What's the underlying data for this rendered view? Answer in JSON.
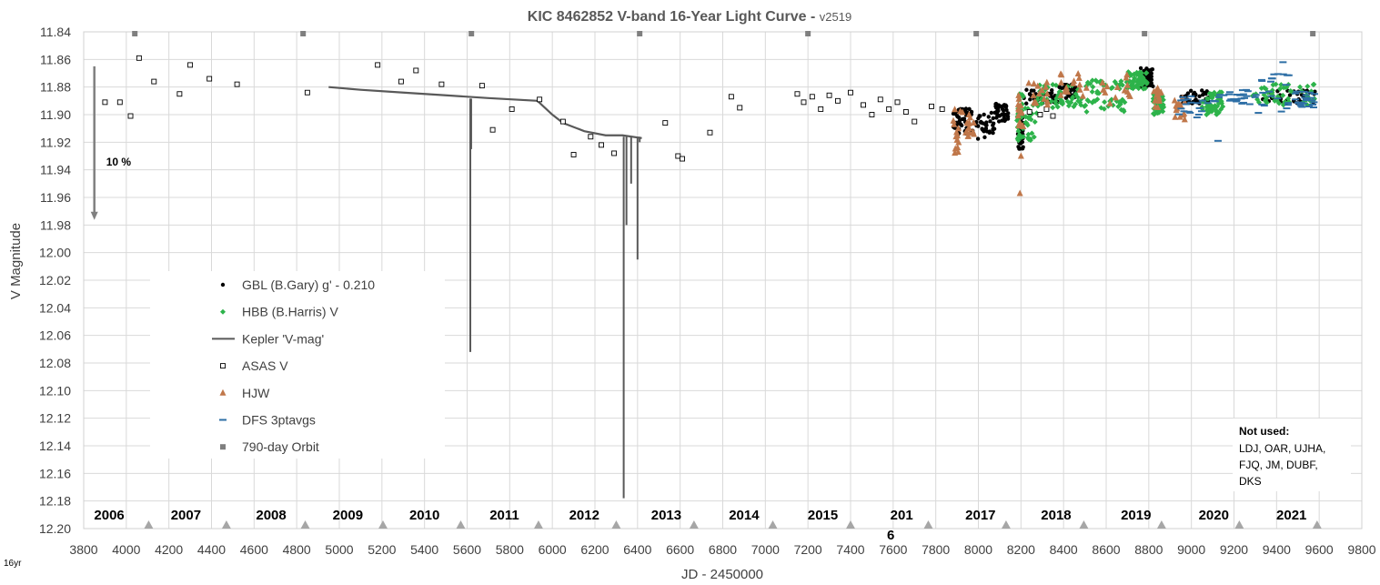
{
  "chart_data": {
    "type": "scatter",
    "title": "KIC 8462852 V-band 16-Year Light Curve",
    "title_suffix": " - ",
    "version": "v2519",
    "xlabel": "JD - 2450000",
    "ylabel": "V Magnitude",
    "corner_label": "16yr",
    "xlim": [
      3800,
      9800
    ],
    "ylim": [
      12.2,
      11.84
    ],
    "y_inverted": true,
    "grid": true,
    "legend_position": "left-middle",
    "x_ticks": [
      3800,
      4000,
      4200,
      4400,
      4600,
      4800,
      5000,
      5200,
      5400,
      5600,
      5800,
      6000,
      6200,
      6400,
      6600,
      6800,
      7000,
      7200,
      7400,
      7600,
      7800,
      8000,
      8200,
      8400,
      8600,
      8800,
      9000,
      9200,
      9400,
      9600,
      9800
    ],
    "y_ticks": [
      "11.84",
      "11.86",
      "11.88",
      "11.90",
      "11.92",
      "11.94",
      "11.96",
      "11.98",
      "12.00",
      "12.02",
      "12.04",
      "12.06",
      "12.08",
      "12.10",
      "12.12",
      "12.14",
      "12.16",
      "12.18",
      "12.20"
    ],
    "year_labels": [
      {
        "text": "2006",
        "x": 3920
      },
      {
        "text": "2007",
        "x": 4280
      },
      {
        "text": "2008",
        "x": 4680
      },
      {
        "text": "2009",
        "x": 5040
      },
      {
        "text": "2010",
        "x": 5400
      },
      {
        "text": "2011",
        "x": 5775
      },
      {
        "text": "2012",
        "x": 6150
      },
      {
        "text": "2013",
        "x": 6535
      },
      {
        "text": "2014",
        "x": 6900
      },
      {
        "text": "2015",
        "x": 7270
      },
      {
        "text": "201",
        "text2": "6",
        "x": 7640
      },
      {
        "text": "2017",
        "x": 8010
      },
      {
        "text": "2018",
        "x": 8365
      },
      {
        "text": "2019",
        "x": 8740
      },
      {
        "text": "2020",
        "x": 9105
      },
      {
        "text": "2021",
        "x": 9470
      }
    ],
    "year_markers": [
      4105,
      4470,
      4840,
      5205,
      5570,
      5935,
      6300,
      6665,
      7035,
      7400,
      7765,
      8130,
      8495,
      8860,
      9225,
      9590
    ],
    "orbit_markers": [
      4040,
      4830,
      5620,
      6410,
      7200,
      7990,
      8780,
      9570
    ],
    "annotation": {
      "text": "10 %",
      "x_at": 3850,
      "y_from": 11.865,
      "y_to": 11.975
    },
    "note_title": "Not used:",
    "note_lines": [
      "LDJ, OAR, UJHA,",
      "FJQ, JM, DUBF,",
      "DKS"
    ],
    "series": [
      {
        "name": "GBL (B.Gary) g' - 0.210",
        "marker": "dot",
        "color": "#000000",
        "ranges": [
          [
            7880,
            7960,
            11.895,
            11.915
          ],
          [
            7960,
            8080,
            11.898,
            11.918
          ],
          [
            8080,
            8140,
            11.892,
            11.905
          ],
          [
            8185,
            8210,
            11.9,
            11.925
          ],
          [
            8210,
            8380,
            11.882,
            11.892
          ],
          [
            8380,
            8460,
            11.878,
            11.888
          ],
          [
            8760,
            8820,
            11.866,
            11.88
          ],
          [
            8950,
            9080,
            11.882,
            11.892
          ],
          [
            9330,
            9580,
            11.882,
            11.892
          ]
        ],
        "count": 340,
        "seed": 11
      },
      {
        "name": "HBB (B.Harris) V",
        "marker": "diamond",
        "color": "#2db34a",
        "ranges": [
          [
            8180,
            8280,
            11.884,
            11.92
          ],
          [
            8280,
            8500,
            11.878,
            11.895
          ],
          [
            8500,
            8700,
            11.875,
            11.898
          ],
          [
            8700,
            8800,
            11.869,
            11.882
          ],
          [
            8820,
            8870,
            11.885,
            11.9
          ],
          [
            9050,
            9150,
            11.883,
            11.9
          ],
          [
            9280,
            9580,
            11.878,
            11.893
          ]
        ],
        "count": 360,
        "seed": 23
      },
      {
        "name": "Kepler 'V-mag'",
        "marker": "line",
        "color": "#595959",
        "points": [
          [
            4950,
            11.88
          ],
          [
            5100,
            11.882
          ],
          [
            5300,
            11.884
          ],
          [
            5500,
            11.886
          ],
          [
            5700,
            11.888
          ],
          [
            5930,
            11.89
          ],
          [
            6000,
            11.9
          ],
          [
            6050,
            11.906
          ],
          [
            6150,
            11.912
          ],
          [
            6250,
            11.915
          ],
          [
            6330,
            11.915
          ],
          [
            6420,
            11.917
          ]
        ],
        "dips": [
          [
            5615,
            12.072
          ],
          [
            5619,
            11.925
          ],
          [
            6335,
            12.178
          ],
          [
            6348,
            11.98
          ],
          [
            6370,
            11.95
          ],
          [
            6400,
            12.005
          ],
          [
            6410,
            11.92
          ]
        ]
      },
      {
        "name": "ASAS V",
        "marker": "square-open",
        "color": "#000000",
        "points": [
          [
            3900,
            11.891
          ],
          [
            3970,
            11.891
          ],
          [
            4020,
            11.901
          ],
          [
            4060,
            11.859
          ],
          [
            4130,
            11.876
          ],
          [
            4250,
            11.885
          ],
          [
            4300,
            11.864
          ],
          [
            4390,
            11.874
          ],
          [
            4520,
            11.878
          ],
          [
            4850,
            11.884
          ],
          [
            5180,
            11.864
          ],
          [
            5290,
            11.876
          ],
          [
            5360,
            11.868
          ],
          [
            5480,
            11.878
          ],
          [
            5670,
            11.879
          ],
          [
            5720,
            11.911
          ],
          [
            5810,
            11.896
          ],
          [
            5940,
            11.889
          ],
          [
            6050,
            11.905
          ],
          [
            6100,
            11.929
          ],
          [
            6180,
            11.916
          ],
          [
            6230,
            11.922
          ],
          [
            6290,
            11.928
          ],
          [
            6530,
            11.906
          ],
          [
            6590,
            11.93
          ],
          [
            6610,
            11.932
          ],
          [
            6740,
            11.913
          ],
          [
            6840,
            11.887
          ],
          [
            6880,
            11.895
          ],
          [
            7150,
            11.885
          ],
          [
            7180,
            11.891
          ],
          [
            7220,
            11.887
          ],
          [
            7260,
            11.896
          ],
          [
            7300,
            11.886
          ],
          [
            7340,
            11.89
          ],
          [
            7400,
            11.884
          ],
          [
            7460,
            11.893
          ],
          [
            7500,
            11.9
          ],
          [
            7540,
            11.889
          ],
          [
            7580,
            11.896
          ],
          [
            7620,
            11.891
          ],
          [
            7660,
            11.898
          ],
          [
            7700,
            11.905
          ],
          [
            7780,
            11.894
          ],
          [
            7830,
            11.896
          ],
          [
            8240,
            11.898
          ],
          [
            8290,
            11.9
          ],
          [
            8320,
            11.896
          ],
          [
            8350,
            11.901
          ]
        ]
      },
      {
        "name": "HJW",
        "marker": "triangle",
        "color": "#c0774a",
        "ranges": [
          [
            7880,
            7940,
            11.895,
            11.928
          ],
          [
            7940,
            7990,
            11.9,
            11.916
          ],
          [
            8185,
            8215,
            11.88,
            11.91
          ],
          [
            8230,
            8330,
            11.876,
            11.893
          ],
          [
            8380,
            8520,
            11.87,
            11.887
          ],
          [
            8580,
            8720,
            11.87,
            11.892
          ],
          [
            8820,
            8860,
            11.88,
            11.895
          ],
          [
            8920,
            8970,
            11.885,
            11.905
          ]
        ],
        "extra_points": [
          [
            8195,
            11.957
          ],
          [
            8200,
            11.93
          ]
        ],
        "count": 120,
        "seed": 37
      },
      {
        "name": "DFS 3ptavgs",
        "marker": "dash",
        "color": "#2e6fa6",
        "ranges": [
          [
            8940,
            9170,
            11.885,
            11.905
          ],
          [
            9170,
            9300,
            11.88,
            11.893
          ],
          [
            9300,
            9480,
            11.868,
            11.9
          ],
          [
            9480,
            9580,
            11.883,
            11.895
          ]
        ],
        "extra_points": [
          [
            9125,
            11.919
          ],
          [
            9035,
            11.9
          ],
          [
            9430,
            11.862
          ]
        ],
        "count": 90,
        "seed": 53
      },
      {
        "name": "790-day Orbit",
        "marker": "square-solid",
        "color": "#7f7f7f"
      }
    ]
  }
}
